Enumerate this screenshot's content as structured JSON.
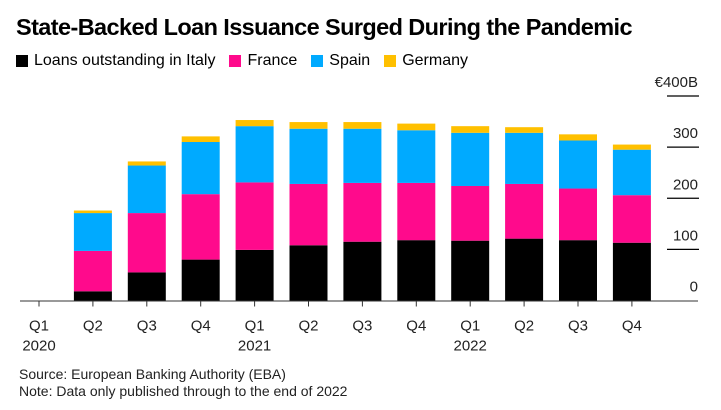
{
  "chart_data": {
    "type": "bar",
    "stacked": true,
    "title": "State-Backed Loan Issuance Surged During the Pandemic",
    "xlabel": "",
    "ylabel": "",
    "y_unit_label": "€400B",
    "ylim": [
      0,
      400
    ],
    "yticks": [
      0,
      100,
      200,
      300,
      400
    ],
    "ytick_labels": [
      "0",
      "100",
      "200",
      "300",
      "€400B"
    ],
    "grid": true,
    "legend_position": "top-left",
    "categories": [
      "Q1 2020",
      "Q2 2020",
      "Q3 2020",
      "Q4 2020",
      "Q1 2021",
      "Q2 2021",
      "Q3 2021",
      "Q4 2021",
      "Q1 2022",
      "Q2 2022",
      "Q3 2022",
      "Q4 2022"
    ],
    "xtick_labels": [
      {
        "quarter": "Q1",
        "year": "2020"
      },
      {
        "quarter": "Q2",
        "year": ""
      },
      {
        "quarter": "Q3",
        "year": ""
      },
      {
        "quarter": "Q4",
        "year": ""
      },
      {
        "quarter": "Q1",
        "year": "2021"
      },
      {
        "quarter": "Q2",
        "year": ""
      },
      {
        "quarter": "Q3",
        "year": ""
      },
      {
        "quarter": "Q4",
        "year": ""
      },
      {
        "quarter": "Q1",
        "year": "2022"
      },
      {
        "quarter": "Q2",
        "year": ""
      },
      {
        "quarter": "Q3",
        "year": ""
      },
      {
        "quarter": "Q4",
        "year": ""
      }
    ],
    "series": [
      {
        "name": "Loans outstanding in Italy",
        "color": "#000000",
        "values": [
          0,
          18,
          55,
          80,
          99,
          108,
          115,
          118,
          117,
          121,
          118,
          113
        ]
      },
      {
        "name": "France",
        "color": "#ff0a8c",
        "values": [
          0,
          79,
          116,
          128,
          132,
          120,
          115,
          112,
          107,
          107,
          101,
          93
        ]
      },
      {
        "name": "Spain",
        "color": "#00aaff",
        "values": [
          0,
          74,
          93,
          102,
          110,
          108,
          106,
          103,
          104,
          100,
          94,
          89
        ]
      },
      {
        "name": "Germany",
        "color": "#ffc000",
        "values": [
          0,
          5,
          8,
          11,
          12,
          13,
          13,
          13,
          13,
          11,
          12,
          10
        ]
      }
    ]
  },
  "footer": {
    "source": "Source: European Banking Authority (EBA)",
    "note": "Note: Data only published through to the end of 2022"
  }
}
